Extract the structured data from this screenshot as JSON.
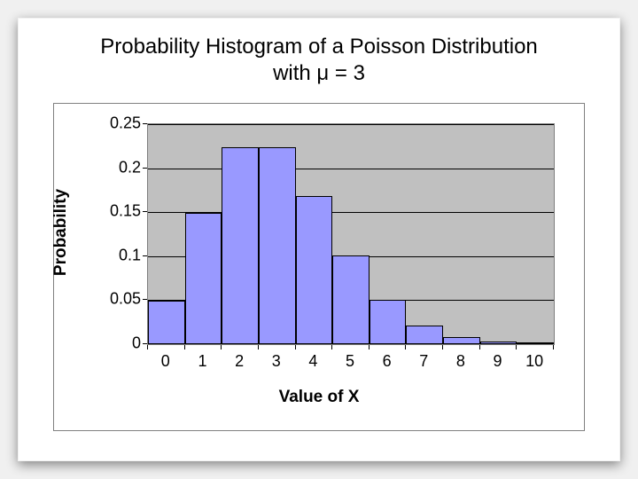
{
  "title_line1": "Probability Histogram of a Poisson Distribution",
  "title_line2": "with μ = 3",
  "chart": {
    "type": "bar",
    "categories": [
      "0",
      "1",
      "2",
      "3",
      "4",
      "5",
      "6",
      "7",
      "8",
      "9",
      "10"
    ],
    "values": [
      0.0498,
      0.1494,
      0.224,
      0.224,
      0.168,
      0.1008,
      0.0504,
      0.0216,
      0.0081,
      0.0027,
      0.0008
    ],
    "bar_color": "#9999ff",
    "bar_border": "#000000",
    "plot_bg": "#c0c0c0",
    "grid_color": "#000000",
    "ylim": [
      0,
      0.25
    ],
    "ytick_step": 0.05,
    "ytick_labels": [
      "0",
      "0.05",
      "0.1",
      "0.15",
      "0.2",
      "0.25"
    ],
    "ylabel": "Probability",
    "xlabel": "Value of X",
    "title_fontsize": 24,
    "label_fontsize": 19,
    "tick_fontsize": 18,
    "bar_gap_ratio": 0.0,
    "plot_border": "#7f7f7f",
    "frame_border": "#808080",
    "background_color": "#ffffff"
  }
}
